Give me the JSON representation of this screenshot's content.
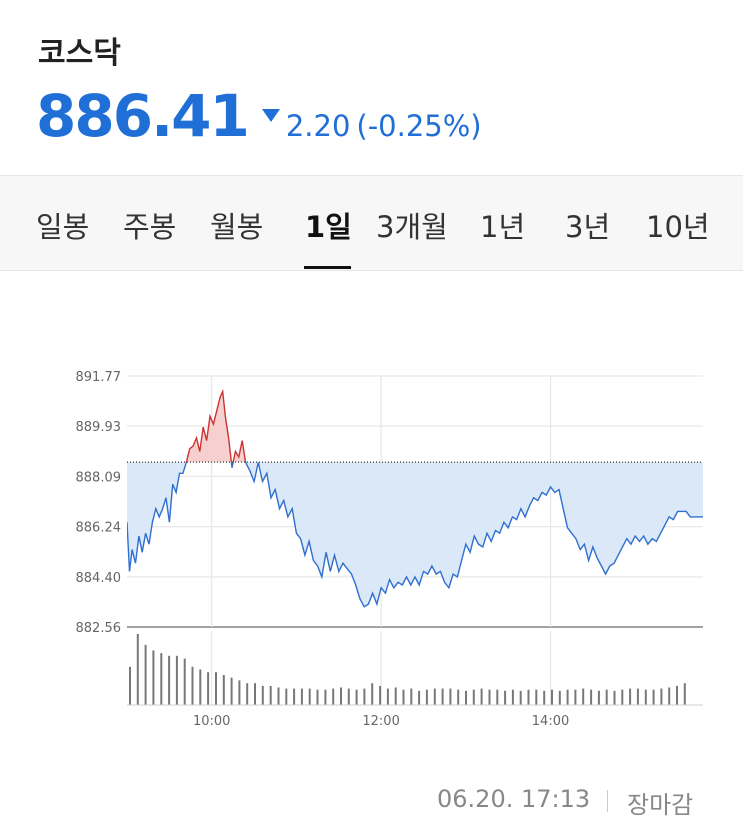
{
  "header": {
    "title": "코스닥",
    "price": "886.41",
    "change": "2.20",
    "change_pct": "(-0.25%)",
    "direction_icon": "triangle-down-icon",
    "color_down": "#1f6fd6",
    "color_up": "#d9534f"
  },
  "tabs": [
    {
      "label": "일봉",
      "active": false
    },
    {
      "label": "주봉",
      "active": false
    },
    {
      "label": "월봉",
      "active": false
    },
    {
      "label": "1일",
      "active": true
    },
    {
      "label": "3개월",
      "active": false
    },
    {
      "label": "1년",
      "active": false
    },
    {
      "label": "3년",
      "active": false
    },
    {
      "label": "10년",
      "active": false
    }
  ],
  "chart_data": {
    "type": "area",
    "y_ticks": [
      "891.77",
      "889.93",
      "888.09",
      "886.24",
      "884.40",
      "882.56"
    ],
    "ylim": [
      882.56,
      891.77
    ],
    "x_ticks": [
      "10:00",
      "12:00",
      "14:00"
    ],
    "xlim": [
      9.0,
      15.8
    ],
    "baseline": 888.61,
    "grid": true,
    "series": [
      {
        "values": [
          [
            9.0,
            886.4
          ],
          [
            9.03,
            884.6
          ],
          [
            9.06,
            885.4
          ],
          [
            9.1,
            884.9
          ],
          [
            9.14,
            885.9
          ],
          [
            9.18,
            885.3
          ],
          [
            9.22,
            886.0
          ],
          [
            9.26,
            885.6
          ],
          [
            9.3,
            886.4
          ],
          [
            9.34,
            886.9
          ],
          [
            9.38,
            886.6
          ],
          [
            9.42,
            886.9
          ],
          [
            9.46,
            887.3
          ],
          [
            9.5,
            886.4
          ],
          [
            9.54,
            887.8
          ],
          [
            9.58,
            887.5
          ],
          [
            9.62,
            888.2
          ],
          [
            9.66,
            888.2
          ],
          [
            9.7,
            888.6
          ],
          [
            9.74,
            889.1
          ],
          [
            9.78,
            889.2
          ],
          [
            9.82,
            889.5
          ],
          [
            9.86,
            889.0
          ],
          [
            9.9,
            889.9
          ],
          [
            9.94,
            889.4
          ],
          [
            9.98,
            890.3
          ],
          [
            10.02,
            890.0
          ],
          [
            10.06,
            890.5
          ],
          [
            10.1,
            891.0
          ],
          [
            10.13,
            891.2
          ],
          [
            10.16,
            890.3
          ],
          [
            10.2,
            889.5
          ],
          [
            10.24,
            888.4
          ],
          [
            10.28,
            889.0
          ],
          [
            10.32,
            888.8
          ],
          [
            10.36,
            889.4
          ],
          [
            10.4,
            888.6
          ],
          [
            10.45,
            888.3
          ],
          [
            10.5,
            887.9
          ],
          [
            10.55,
            888.6
          ],
          [
            10.6,
            887.9
          ],
          [
            10.65,
            888.2
          ],
          [
            10.7,
            887.3
          ],
          [
            10.75,
            887.6
          ],
          [
            10.8,
            886.9
          ],
          [
            10.85,
            887.2
          ],
          [
            10.9,
            886.6
          ],
          [
            10.95,
            886.9
          ],
          [
            11.0,
            886.0
          ],
          [
            11.05,
            885.8
          ],
          [
            11.1,
            885.2
          ],
          [
            11.15,
            885.7
          ],
          [
            11.2,
            885.0
          ],
          [
            11.25,
            884.8
          ],
          [
            11.3,
            884.4
          ],
          [
            11.35,
            885.3
          ],
          [
            11.4,
            884.6
          ],
          [
            11.45,
            885.2
          ],
          [
            11.5,
            884.6
          ],
          [
            11.55,
            884.9
          ],
          [
            11.6,
            884.7
          ],
          [
            11.65,
            884.5
          ],
          [
            11.7,
            884.1
          ],
          [
            11.75,
            883.6
          ],
          [
            11.8,
            883.3
          ],
          [
            11.85,
            883.4
          ],
          [
            11.9,
            883.8
          ],
          [
            11.95,
            883.4
          ],
          [
            12.0,
            884.0
          ],
          [
            12.05,
            883.8
          ],
          [
            12.1,
            884.3
          ],
          [
            12.15,
            884.0
          ],
          [
            12.2,
            884.2
          ],
          [
            12.25,
            884.1
          ],
          [
            12.3,
            884.4
          ],
          [
            12.35,
            884.1
          ],
          [
            12.4,
            884.4
          ],
          [
            12.45,
            884.1
          ],
          [
            12.5,
            884.6
          ],
          [
            12.55,
            884.5
          ],
          [
            12.6,
            884.8
          ],
          [
            12.65,
            884.5
          ],
          [
            12.7,
            884.6
          ],
          [
            12.75,
            884.2
          ],
          [
            12.8,
            884.0
          ],
          [
            12.85,
            884.5
          ],
          [
            12.9,
            884.4
          ],
          [
            12.95,
            885.0
          ],
          [
            13.0,
            885.6
          ],
          [
            13.05,
            885.3
          ],
          [
            13.1,
            885.9
          ],
          [
            13.15,
            885.6
          ],
          [
            13.2,
            885.5
          ],
          [
            13.25,
            886.0
          ],
          [
            13.3,
            885.7
          ],
          [
            13.35,
            886.1
          ],
          [
            13.4,
            886.0
          ],
          [
            13.45,
            886.4
          ],
          [
            13.5,
            886.2
          ],
          [
            13.55,
            886.6
          ],
          [
            13.6,
            886.5
          ],
          [
            13.65,
            886.9
          ],
          [
            13.7,
            886.6
          ],
          [
            13.75,
            887.0
          ],
          [
            13.8,
            887.3
          ],
          [
            13.85,
            887.2
          ],
          [
            13.9,
            887.5
          ],
          [
            13.95,
            887.4
          ],
          [
            14.0,
            887.7
          ],
          [
            14.05,
            887.5
          ],
          [
            14.1,
            887.6
          ],
          [
            14.15,
            886.9
          ],
          [
            14.2,
            886.2
          ],
          [
            14.25,
            886.0
          ],
          [
            14.3,
            885.8
          ],
          [
            14.35,
            885.4
          ],
          [
            14.4,
            885.6
          ],
          [
            14.45,
            885.0
          ],
          [
            14.5,
            885.5
          ],
          [
            14.55,
            885.1
          ],
          [
            14.6,
            884.8
          ],
          [
            14.65,
            884.5
          ],
          [
            14.7,
            884.8
          ],
          [
            14.75,
            884.9
          ],
          [
            14.8,
            885.2
          ],
          [
            14.85,
            885.5
          ],
          [
            14.9,
            885.8
          ],
          [
            14.95,
            885.6
          ],
          [
            15.0,
            885.9
          ],
          [
            15.05,
            885.7
          ],
          [
            15.1,
            885.9
          ],
          [
            15.15,
            885.6
          ],
          [
            15.2,
            885.8
          ],
          [
            15.25,
            885.7
          ],
          [
            15.3,
            886.0
          ],
          [
            15.35,
            886.3
          ],
          [
            15.4,
            886.6
          ],
          [
            15.45,
            886.5
          ],
          [
            15.5,
            886.8
          ],
          [
            15.55,
            886.8
          ],
          [
            15.6,
            886.8
          ],
          [
            15.65,
            886.6
          ],
          [
            15.7,
            886.6
          ],
          [
            15.8,
            886.6
          ]
        ]
      }
    ],
    "volume": [
      70,
      130,
      110,
      100,
      95,
      90,
      90,
      85,
      70,
      65,
      60,
      60,
      55,
      50,
      45,
      40,
      40,
      35,
      35,
      32,
      30,
      30,
      30,
      30,
      28,
      28,
      30,
      32,
      30,
      28,
      30,
      40,
      35,
      30,
      32,
      28,
      30,
      26,
      28,
      30,
      30,
      30,
      28,
      26,
      28,
      30,
      28,
      28,
      26,
      28,
      26,
      28,
      28,
      26,
      28,
      26,
      28,
      28,
      30,
      28,
      26,
      28,
      26,
      28,
      30,
      30,
      28,
      28,
      30,
      32,
      35,
      40
    ],
    "colors": {
      "line": "#2f6fd0",
      "fill": "#dbe8f8",
      "above_line": "#cc3333",
      "above_fill": "#f5d0cf",
      "volume": "#777777"
    }
  },
  "footer": {
    "timestamp": "06.20. 17:13",
    "status": "장마감"
  }
}
